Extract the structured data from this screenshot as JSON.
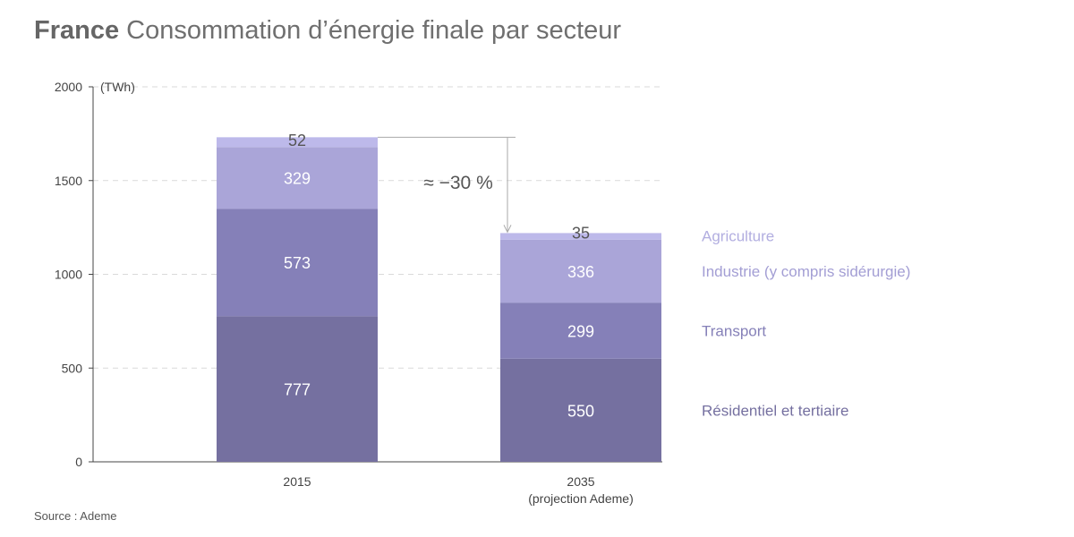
{
  "header": {
    "country": "France",
    "subtitle": "Consommation d’énergie finale par secteur"
  },
  "source": "Source : Ademe",
  "annotation": "≈ −30 %",
  "chart_data": {
    "type": "bar",
    "stacked": true,
    "title": "France Consommation d’énergie finale par secteur",
    "ylabel": "(TWh)",
    "ylim": [
      0,
      2000
    ],
    "yticks": [
      0,
      500,
      1000,
      1500,
      2000
    ],
    "categories": [
      {
        "label": "2015",
        "sublabel": ""
      },
      {
        "label": "2035",
        "sublabel": "(projection Ademe)"
      }
    ],
    "series": [
      {
        "name": "Résidentiel et tertiaire",
        "color": "#7570a0",
        "values": [
          777,
          550
        ]
      },
      {
        "name": "Transport",
        "color": "#8580b8",
        "values": [
          573,
          299
        ]
      },
      {
        "name": "Industrie (y compris sidérurgie)",
        "color": "#aaa5d8",
        "values": [
          329,
          336
        ]
      },
      {
        "name": "Agriculture",
        "color": "#bdb9ea",
        "values": [
          52,
          35
        ]
      }
    ],
    "legend_colors": [
      "#7570a0",
      "#8580b8",
      "#a39ed4",
      "#b2aee0"
    ],
    "grid": true,
    "legend": "right"
  }
}
